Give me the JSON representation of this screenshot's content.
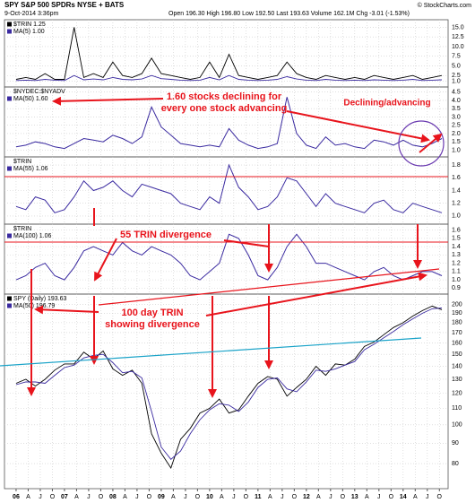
{
  "chart_data": [
    {
      "type": "line",
      "title": "SPY S&P 500 SPDRs NYSE + BATS",
      "date": "9-Oct-2014 3:36pm",
      "quote": "Open 196.30 High 196.80 Low 192.50 Last 193.63 Volume 162.1M Chg -3.01 (-1.53%)",
      "source": "© StockCharts.com",
      "x": [
        2006,
        2006.2,
        2006.4,
        2006.6,
        2006.8,
        2007,
        2007.2,
        2007.4,
        2007.6,
        2007.8,
        2008,
        2008.2,
        2008.4,
        2008.6,
        2008.8,
        2009,
        2009.2,
        2009.4,
        2009.6,
        2009.8,
        2010,
        2010.2,
        2010.4,
        2010.6,
        2010.8,
        2011,
        2011.2,
        2011.4,
        2011.6,
        2011.8,
        2012,
        2012.2,
        2012.4,
        2012.6,
        2012.8,
        2013,
        2013.2,
        2013.4,
        2013.6,
        2013.8,
        2014,
        2014.2,
        2014.4,
        2014.6,
        2014.8
      ],
      "series": [
        {
          "name": "$TRIN 1.25",
          "color": "#000000",
          "values": [
            1.5,
            2,
            1.5,
            3,
            1.5,
            1.5,
            15,
            2,
            3,
            2,
            6,
            2.5,
            2,
            3,
            7,
            3,
            2.5,
            2,
            1.5,
            2,
            6,
            2,
            8,
            2.5,
            2,
            1.5,
            2,
            2.5,
            6,
            3,
            2,
            1.5,
            2.5,
            2,
            1.5,
            2,
            1.5,
            2.5,
            2,
            1.5,
            2,
            2.5,
            1.5,
            2,
            2.5
          ]
        },
        {
          "name": "MA(5) 1.00",
          "color": "#3a2aa0",
          "values": [
            1.2,
            1.3,
            1.2,
            1.5,
            1.3,
            1.2,
            2.5,
            1.4,
            1.6,
            1.4,
            2,
            1.5,
            1.4,
            1.6,
            2.5,
            1.7,
            1.5,
            1.3,
            1.2,
            1.3,
            2,
            1.4,
            2.5,
            1.5,
            1.3,
            1.2,
            1.3,
            1.5,
            2.2,
            1.6,
            1.3,
            1.2,
            1.5,
            1.3,
            1.2,
            1.3,
            1.2,
            1.4,
            1.3,
            1.2,
            1.3,
            1.5,
            1.2,
            1.3,
            1.4
          ]
        }
      ],
      "xlim": [
        2005.76,
        2014.93
      ],
      "ylim": [
        0,
        16.5
      ],
      "yticks": [
        {
          "value": 15,
          "label": "15.0"
        },
        12.5,
        {
          "value": 10,
          "label": "10.0"
        },
        7.5,
        {
          "value": 5,
          "label": "5.0"
        },
        2.5,
        {
          "value": 1,
          "label": "1.0"
        }
      ],
      "grid": true
    },
    {
      "type": "line",
      "symbol": "$NYDEC:$NYADV",
      "annotations": [
        "1.60 stocks declining for",
        "every one stock advancing",
        "Declining/advancing"
      ],
      "x": [
        2006,
        2006.2,
        2006.4,
        2006.6,
        2006.8,
        2007,
        2007.2,
        2007.4,
        2007.6,
        2007.8,
        2008,
        2008.2,
        2008.4,
        2008.6,
        2008.8,
        2009,
        2009.2,
        2009.4,
        2009.6,
        2009.8,
        2010,
        2010.2,
        2010.4,
        2010.6,
        2010.8,
        2011,
        2011.2,
        2011.4,
        2011.6,
        2011.8,
        2012,
        2012.2,
        2012.4,
        2012.6,
        2012.8,
        2013,
        2013.2,
        2013.4,
        2013.6,
        2013.8,
        2014,
        2014.2,
        2014.4,
        2014.6,
        2014.8
      ],
      "series": [
        {
          "name": "MA(50) 1.60",
          "color": "#3a2aa0",
          "values": [
            1.2,
            1.3,
            1.5,
            1.4,
            1.2,
            1.1,
            1.4,
            1.7,
            1.6,
            1.5,
            1.9,
            1.7,
            1.4,
            1.8,
            3.6,
            2.4,
            1.9,
            1.4,
            1.3,
            1.2,
            1.3,
            1.2,
            2.3,
            1.6,
            1.3,
            1.1,
            1.2,
            1.4,
            4.2,
            2.0,
            1.3,
            1.1,
            1.8,
            1.3,
            1.4,
            1.2,
            1.1,
            1.6,
            1.5,
            1.3,
            1.6,
            1.3,
            1.2,
            1.4,
            1.7
          ]
        }
      ],
      "xlim": [
        2005.76,
        2014.93
      ],
      "ylim": [
        0.7,
        4.7
      ],
      "yticks": [
        4.5,
        {
          "value": 4,
          "label": "4.0"
        },
        3.5,
        {
          "value": 3,
          "label": "3.0"
        },
        2.5,
        {
          "value": 2,
          "label": "2.0"
        },
        1.5,
        {
          "value": 1,
          "label": "1.0"
        }
      ],
      "grid": true
    },
    {
      "type": "line",
      "symbol": "$TRIN",
      "x": [
        2006,
        2006.2,
        2006.4,
        2006.6,
        2006.8,
        2007,
        2007.2,
        2007.4,
        2007.6,
        2007.8,
        2008,
        2008.2,
        2008.4,
        2008.6,
        2008.8,
        2009,
        2009.2,
        2009.4,
        2009.6,
        2009.8,
        2010,
        2010.2,
        2010.4,
        2010.6,
        2010.8,
        2011,
        2011.2,
        2011.4,
        2011.6,
        2011.8,
        2012,
        2012.2,
        2012.4,
        2012.6,
        2012.8,
        2013,
        2013.2,
        2013.4,
        2013.6,
        2013.8,
        2014,
        2014.2,
        2014.4,
        2014.6,
        2014.8
      ],
      "series": [
        {
          "name": "MA(55) 1.06",
          "color": "#3a2aa0",
          "values": [
            1.15,
            1.1,
            1.3,
            1.25,
            1.05,
            1.1,
            1.3,
            1.55,
            1.4,
            1.45,
            1.55,
            1.4,
            1.3,
            1.5,
            1.45,
            1.4,
            1.35,
            1.2,
            1.15,
            1.1,
            1.3,
            1.2,
            1.8,
            1.45,
            1.3,
            1.1,
            1.15,
            1.3,
            1.6,
            1.55,
            1.35,
            1.15,
            1.35,
            1.2,
            1.15,
            1.1,
            1.05,
            1.2,
            1.25,
            1.1,
            1.05,
            1.2,
            1.15,
            1.1,
            1.05
          ]
        }
      ],
      "xlim": [
        2005.76,
        2014.93
      ],
      "ylim": [
        0.9,
        1.9
      ],
      "yticks": [
        1.8,
        1.6,
        1.4,
        1.2,
        {
          "value": 1,
          "label": "1.0"
        }
      ],
      "grid": true
    },
    {
      "type": "line",
      "symbol": "$TRIN",
      "annotations": [
        "55 TRIN divergence"
      ],
      "x": [
        2006,
        2006.2,
        2006.4,
        2006.6,
        2006.8,
        2007,
        2007.2,
        2007.4,
        2007.6,
        2007.8,
        2008,
        2008.2,
        2008.4,
        2008.6,
        2008.8,
        2009,
        2009.2,
        2009.4,
        2009.6,
        2009.8,
        2010,
        2010.2,
        2010.4,
        2010.6,
        2010.8,
        2011,
        2011.2,
        2011.4,
        2011.6,
        2011.8,
        2012,
        2012.2,
        2012.4,
        2012.6,
        2012.8,
        2013,
        2013.2,
        2013.4,
        2013.6,
        2013.8,
        2014,
        2014.2,
        2014.4,
        2014.6,
        2014.8
      ],
      "series": [
        {
          "name": "MA(100) 1.06",
          "color": "#3a2aa0",
          "values": [
            1.0,
            1.05,
            1.15,
            1.2,
            1.05,
            1.0,
            1.15,
            1.35,
            1.4,
            1.35,
            1.3,
            1.45,
            1.35,
            1.3,
            1.4,
            1.35,
            1.3,
            1.2,
            1.05,
            1.0,
            1.1,
            1.2,
            1.55,
            1.5,
            1.3,
            1.05,
            1.0,
            1.15,
            1.4,
            1.55,
            1.4,
            1.2,
            1.2,
            1.15,
            1.1,
            1.05,
            1.0,
            1.1,
            1.15,
            1.05,
            1.0,
            1.05,
            1.1,
            1.1,
            1.05
          ]
        }
      ],
      "xlim": [
        2005.76,
        2014.93
      ],
      "ylim": [
        0.85,
        1.65
      ],
      "yticks": [
        1.6,
        1.5,
        1.4,
        1.3,
        1.2,
        1.1,
        {
          "value": 1,
          "label": "1.0"
        },
        0.9
      ],
      "grid": true
    },
    {
      "type": "line",
      "annotations": [
        "100 day TRIN",
        "showing divergence"
      ],
      "log_scale": true,
      "x": [
        2006,
        2006.2,
        2006.4,
        2006.6,
        2006.8,
        2007,
        2007.2,
        2007.4,
        2007.6,
        2007.8,
        2008,
        2008.2,
        2008.4,
        2008.6,
        2008.8,
        2009,
        2009.2,
        2009.4,
        2009.6,
        2009.8,
        2010,
        2010.2,
        2010.4,
        2010.6,
        2010.8,
        2011,
        2011.2,
        2011.4,
        2011.6,
        2011.8,
        2012,
        2012.2,
        2012.4,
        2012.6,
        2012.8,
        2013,
        2013.2,
        2013.4,
        2013.6,
        2013.8,
        2014,
        2014.2,
        2014.4,
        2014.6,
        2014.8
      ],
      "series": [
        {
          "name": "SPY (Daily) 193.63",
          "color": "#000000",
          "values": [
            127,
            130,
            125,
            130,
            137,
            142,
            142,
            152,
            146,
            153,
            138,
            133,
            137,
            127,
            95,
            85,
            78,
            92,
            98,
            107,
            110,
            116,
            107,
            109,
            118,
            127,
            132,
            130,
            118,
            124,
            130,
            140,
            133,
            142,
            141,
            146,
            157,
            161,
            168,
            175,
            180,
            187,
            193,
            198,
            194
          ]
        },
        {
          "name": "MA(50) 196.79",
          "color": "#3a2aa0",
          "values": [
            126,
            128,
            128,
            127,
            133,
            139,
            141,
            147,
            149,
            150,
            143,
            135,
            136,
            131,
            108,
            88,
            82,
            86,
            95,
            103,
            109,
            113,
            112,
            108,
            114,
            124,
            130,
            131,
            123,
            121,
            128,
            137,
            136,
            138,
            141,
            144,
            154,
            159,
            165,
            171,
            178,
            184,
            190,
            195,
            196
          ]
        }
      ],
      "xlim": [
        2005.76,
        2014.93
      ],
      "ylim": [
        70,
        210
      ],
      "yticks": [
        200,
        190,
        180,
        170,
        160,
        150,
        140,
        130,
        120,
        110,
        100,
        90,
        80
      ],
      "xticks": [
        {
          "value": 2006,
          "label": "06"
        },
        {
          "value": 2006.25,
          "label": "A"
        },
        {
          "value": 2006.5,
          "label": "J"
        },
        {
          "value": 2006.75,
          "label": "O"
        },
        {
          "value": 2007,
          "label": "07"
        },
        {
          "value": 2007.25,
          "label": "A"
        },
        {
          "value": 2007.5,
          "label": "J"
        },
        {
          "value": 2007.75,
          "label": "O"
        },
        {
          "value": 2008,
          "label": "08"
        },
        {
          "value": 2008.25,
          "label": "A"
        },
        {
          "value": 2008.5,
          "label": "J"
        },
        {
          "value": 2008.75,
          "label": "O"
        },
        {
          "value": 2009,
          "label": "09"
        },
        {
          "value": 2009.25,
          "label": "A"
        },
        {
          "value": 2009.5,
          "label": "J"
        },
        {
          "value": 2009.75,
          "label": "O"
        },
        {
          "value": 2010,
          "label": "10"
        },
        {
          "value": 2010.25,
          "label": "A"
        },
        {
          "value": 2010.5,
          "label": "J"
        },
        {
          "value": 2010.75,
          "label": "O"
        },
        {
          "value": 2011,
          "label": "11"
        },
        {
          "value": 2011.25,
          "label": "A"
        },
        {
          "value": 2011.5,
          "label": "J"
        },
        {
          "value": 2011.75,
          "label": "O"
        },
        {
          "value": 2012,
          "label": "12"
        },
        {
          "value": 2012.25,
          "label": "A"
        },
        {
          "value": 2012.5,
          "label": "J"
        },
        {
          "value": 2012.75,
          "label": "O"
        },
        {
          "value": 2013,
          "label": "13"
        },
        {
          "value": 2013.25,
          "label": "A"
        },
        {
          "value": 2013.5,
          "label": "J"
        },
        {
          "value": 2013.75,
          "label": "O"
        },
        {
          "value": 2014,
          "label": "14"
        },
        {
          "value": 2014.25,
          "label": "A"
        },
        {
          "value": 2014.5,
          "label": "J"
        },
        {
          "value": 2014.75,
          "label": "O"
        }
      ],
      "grid": true
    }
  ]
}
